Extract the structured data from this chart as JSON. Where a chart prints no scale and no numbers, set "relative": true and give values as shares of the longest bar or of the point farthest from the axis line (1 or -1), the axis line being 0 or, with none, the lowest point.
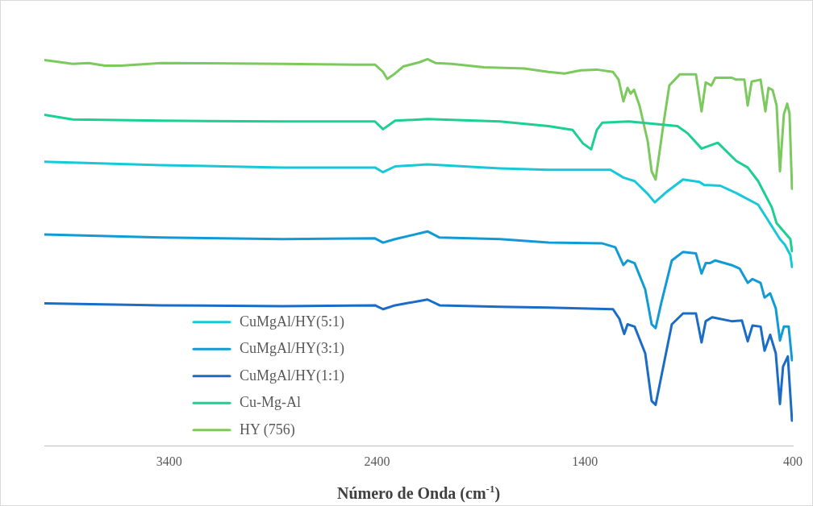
{
  "chart_data": {
    "type": "line",
    "xlabel": "Número de Onda (cm$^{-1}$)",
    "relative": true,
    "xlim": [
      4000,
      400
    ],
    "xticks": [
      3400,
      2400,
      1400,
      400
    ],
    "tick_labels": "x",
    "grid": false,
    "legend": "bottom left",
    "marker": "none",
    "series": [
      {
        "name": "CuMgAl/HY(5:1)",
        "color": "#17c8d8",
        "x": [
          4000,
          3438,
          2856,
          2410,
          2371,
          2313,
          2157,
          1808,
          1576,
          1277,
          1215,
          1161,
          1098,
          1064,
          1005,
          928,
          850,
          827,
          749,
          672,
          567,
          517,
          462,
          439,
          412,
          404
        ],
        "values": [
          0.735,
          0.726,
          0.72,
          0.72,
          0.708,
          0.723,
          0.728,
          0.718,
          0.714,
          0.714,
          0.694,
          0.685,
          0.652,
          0.63,
          0.658,
          0.689,
          0.683,
          0.675,
          0.673,
          0.654,
          0.624,
          0.582,
          0.535,
          0.521,
          0.494,
          0.463
        ]
      },
      {
        "name": "CuMgAl/HY(3:1)",
        "color": "#119bd6",
        "x": [
          4000,
          3438,
          2856,
          2410,
          2371,
          2313,
          2157,
          2099,
          1808,
          1576,
          1316,
          1254,
          1215,
          1195,
          1161,
          1110,
          1079,
          1060,
          1033,
          982,
          928,
          866,
          839,
          819,
          799,
          773,
          695,
          656,
          617,
          594,
          555,
          536,
          509,
          482,
          462,
          443,
          420,
          404
        ],
        "values": [
          0.547,
          0.539,
          0.535,
          0.537,
          0.526,
          0.535,
          0.555,
          0.539,
          0.535,
          0.526,
          0.524,
          0.514,
          0.468,
          0.48,
          0.473,
          0.405,
          0.315,
          0.305,
          0.37,
          0.48,
          0.502,
          0.498,
          0.446,
          0.473,
          0.473,
          0.48,
          0.468,
          0.459,
          0.422,
          0.432,
          0.422,
          0.384,
          0.395,
          0.356,
          0.273,
          0.309,
          0.309,
          0.222
        ]
      },
      {
        "name": "CuMgAl/HY(1:1)",
        "color": "#1a6cc6",
        "x": [
          4000,
          3438,
          2856,
          2410,
          2371,
          2313,
          2157,
          2099,
          1808,
          1576,
          1265,
          1234,
          1211,
          1195,
          1161,
          1110,
          1079,
          1060,
          1033,
          982,
          928,
          866,
          839,
          819,
          788,
          695,
          645,
          617,
          594,
          555,
          536,
          509,
          482,
          462,
          447,
          424,
          404
        ],
        "values": [
          0.369,
          0.364,
          0.362,
          0.364,
          0.354,
          0.364,
          0.379,
          0.364,
          0.36,
          0.358,
          0.354,
          0.329,
          0.29,
          0.315,
          0.309,
          0.24,
          0.117,
          0.107,
          0.179,
          0.315,
          0.343,
          0.343,
          0.268,
          0.323,
          0.333,
          0.323,
          0.325,
          0.271,
          0.312,
          0.309,
          0.247,
          0.288,
          0.24,
          0.109,
          0.206,
          0.232,
          0.066
        ]
      },
      {
        "name": "Cu-Mg-Al",
        "color": "#1ccf93",
        "x": [
          4000,
          3864,
          3438,
          2856,
          2410,
          2371,
          2313,
          2157,
          1808,
          1576,
          1459,
          1409,
          1370,
          1343,
          1316,
          1188,
          955,
          905,
          839,
          761,
          672,
          617,
          567,
          501,
          478,
          412,
          404
        ],
        "values": [
          0.856,
          0.844,
          0.841,
          0.839,
          0.839,
          0.819,
          0.841,
          0.845,
          0.839,
          0.827,
          0.817,
          0.782,
          0.767,
          0.817,
          0.836,
          0.839,
          0.827,
          0.808,
          0.769,
          0.784,
          0.737,
          0.72,
          0.685,
          0.617,
          0.576,
          0.535,
          0.504
        ]
      },
      {
        "name": "HY (756)",
        "color": "#7cc95e",
        "x": [
          4000,
          3864,
          3787,
          3709,
          3631,
          3438,
          2856,
          2507,
          2410,
          2371,
          2351,
          2313,
          2274,
          2196,
          2157,
          2119,
          2041,
          1886,
          1692,
          1576,
          1498,
          1420,
          1343,
          1265,
          1238,
          1215,
          1195,
          1180,
          1164,
          1137,
          1098,
          1079,
          1060,
          1021,
          994,
          943,
          866,
          839,
          819,
          792,
          773,
          695,
          672,
          633,
          617,
          598,
          555,
          532,
          517,
          497,
          478,
          462,
          443,
          427,
          416,
          404
        ],
        "values": [
          0.998,
          0.988,
          0.99,
          0.983,
          0.983,
          0.99,
          0.988,
          0.986,
          0.986,
          0.967,
          0.949,
          0.963,
          0.981,
          0.992,
          1.0,
          0.99,
          0.988,
          0.979,
          0.976,
          0.967,
          0.963,
          0.971,
          0.973,
          0.967,
          0.947,
          0.891,
          0.926,
          0.911,
          0.921,
          0.879,
          0.788,
          0.71,
          0.689,
          0.837,
          0.932,
          0.961,
          0.961,
          0.865,
          0.94,
          0.932,
          0.952,
          0.952,
          0.947,
          0.947,
          0.88,
          0.942,
          0.947,
          0.865,
          0.926,
          0.92,
          0.88,
          0.71,
          0.858,
          0.885,
          0.86,
          0.665
        ]
      }
    ]
  }
}
